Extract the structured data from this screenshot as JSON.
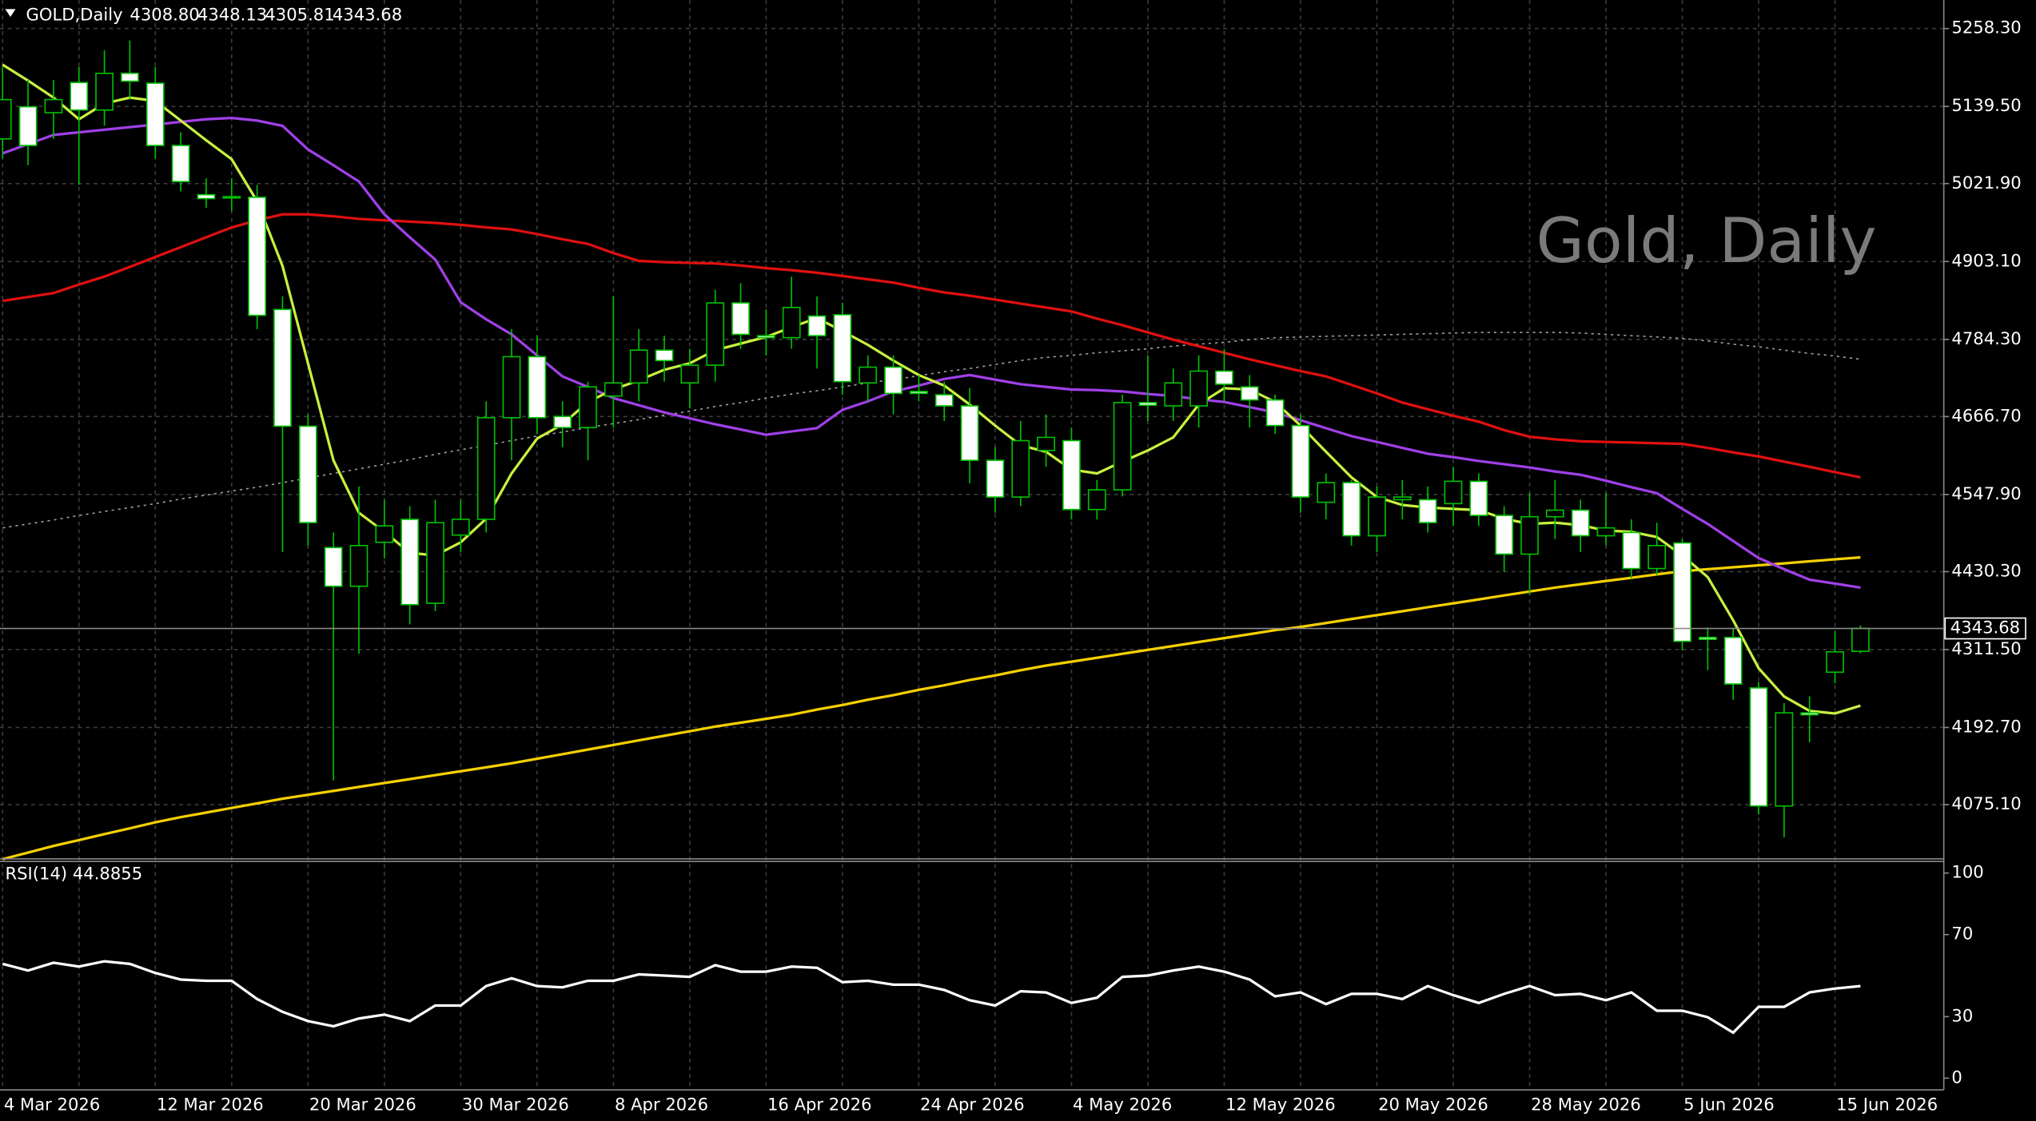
{
  "chart_data": [
    {
      "type": "candlestick",
      "title": "GOLD,Daily",
      "header_ohlc": [
        "4308.80",
        "4348.13",
        "4305.81",
        "4343.68"
      ],
      "watermark": "Gold, Daily",
      "categories": [
        "4 Mar 2026",
        null,
        null,
        null,
        null,
        null,
        "12 Mar 2026",
        null,
        null,
        null,
        null,
        null,
        "20 Mar 2026",
        null,
        null,
        null,
        null,
        null,
        "30 Mar 2026",
        null,
        null,
        null,
        null,
        null,
        "8 Apr 2026",
        null,
        null,
        null,
        null,
        null,
        "16 Apr 2026",
        null,
        null,
        null,
        null,
        null,
        "24 Apr 2026",
        null,
        null,
        null,
        null,
        null,
        "4 May 2026",
        null,
        null,
        null,
        null,
        null,
        "12 May 2026",
        null,
        null,
        null,
        null,
        null,
        "20 May 2026",
        null,
        null,
        null,
        null,
        null,
        "28 May 2026",
        null,
        null,
        null,
        null,
        null,
        "5 Jun 2026",
        null,
        null,
        null,
        null,
        null,
        "15 Jun 2026",
        null
      ],
      "open": [
        5090,
        5139,
        5130,
        5176,
        5134,
        5190,
        5175,
        5080,
        5005,
        5000,
        5001,
        4830,
        4652,
        4467,
        4408,
        4475,
        4510,
        4382,
        4486,
        4510,
        4665,
        4758,
        4667,
        4650,
        4698,
        4718,
        4768,
        4718,
        4745,
        4840,
        4790,
        4787,
        4820,
        4822,
        4718,
        4742,
        4705,
        4700,
        4683,
        4600,
        4544,
        4615,
        4630,
        4525,
        4555,
        4688,
        4683,
        4683,
        4736,
        4712,
        4692,
        4653,
        4536,
        4566,
        4485,
        4540,
        4540,
        4534,
        4568,
        4516,
        4457,
        4514,
        4524,
        4485,
        4490,
        4435,
        4474,
        4330,
        4330,
        4253,
        4073,
        4215,
        4277,
        4308.8
      ],
      "high": [
        5200,
        5180,
        5180,
        5200,
        5225,
        5240,
        5200,
        5100,
        5030,
        5030,
        5020,
        4850,
        4670,
        4490,
        4560,
        4540,
        4530,
        4540,
        4540,
        4690,
        4800,
        4790,
        4690,
        4720,
        4850,
        4800,
        4790,
        4770,
        4860,
        4870,
        4830,
        4880,
        4850,
        4840,
        4760,
        4760,
        4730,
        4720,
        4710,
        4620,
        4660,
        4670,
        4650,
        4570,
        4700,
        4760,
        4740,
        4760,
        4770,
        4730,
        4700,
        4670,
        4580,
        4570,
        4560,
        4570,
        4560,
        4590,
        4580,
        4530,
        4550,
        4570,
        4540,
        4550,
        4510,
        4505,
        4480,
        4345,
        4345,
        4262,
        4230,
        4240,
        4340,
        4348.13
      ],
      "low": [
        5060,
        5050,
        5090,
        5020,
        5110,
        5150,
        5060,
        5010,
        4985,
        4980,
        4800,
        4460,
        4470,
        4112,
        4305,
        4450,
        4350,
        4370,
        4460,
        4490,
        4600,
        4640,
        4620,
        4600,
        4650,
        4690,
        4720,
        4680,
        4720,
        4770,
        4760,
        4770,
        4740,
        4700,
        4690,
        4670,
        4690,
        4660,
        4565,
        4520,
        4530,
        4590,
        4510,
        4510,
        4545,
        4660,
        4660,
        4650,
        4690,
        4650,
        4640,
        4520,
        4510,
        4470,
        4460,
        4510,
        4490,
        4500,
        4500,
        4430,
        4395,
        4480,
        4460,
        4470,
        4420,
        4425,
        4310,
        4280,
        4235,
        4060,
        4025,
        4170,
        4260,
        4305.81
      ],
      "close": [
        5150,
        5080,
        5150,
        5134,
        5190,
        5178,
        5080,
        5025,
        4999,
        5002,
        4821,
        4652,
        4505,
        4408,
        4470,
        4500,
        4380,
        4505,
        4510,
        4665,
        4758,
        4665,
        4650,
        4712,
        4718,
        4768,
        4752,
        4745,
        4840,
        4792,
        4787,
        4833,
        4790,
        4720,
        4742,
        4702,
        4702,
        4683,
        4600,
        4544,
        4630,
        4635,
        4525,
        4555,
        4688,
        4684,
        4718,
        4736,
        4716,
        4692,
        4653,
        4544,
        4566,
        4485,
        4544,
        4544,
        4505,
        4568,
        4516,
        4457,
        4514,
        4524,
        4485,
        4497,
        4435,
        4470,
        4324,
        4327,
        4259,
        4073,
        4215,
        4212,
        4308,
        4343.68
      ],
      "up_color": "#000000",
      "down_color": "#ffffff",
      "wick_color": "#00c000",
      "series": [
        {
          "color": "#9a9a9a",
          "dotted": true,
          "values": [
            4497,
            4503,
            4509,
            4516,
            4522,
            4528,
            4534,
            4541,
            4547,
            4553,
            4559,
            4566,
            4573,
            4580,
            4587,
            4594,
            4601,
            4609,
            4616,
            4623,
            4630,
            4637,
            4643,
            4650,
            4656,
            4662,
            4669,
            4675,
            4682,
            4688,
            4695,
            4701,
            4706,
            4712,
            4718,
            4723,
            4729,
            4735,
            4740,
            4746,
            4752,
            4757,
            4760,
            4764,
            4767,
            4770,
            4774,
            4777,
            4780,
            4784,
            4787,
            4788,
            4789,
            4790,
            4791,
            4792,
            4793,
            4794,
            4795,
            4795,
            4795,
            4795,
            4794,
            4792,
            4790,
            4788,
            4786,
            4782,
            4777,
            4773,
            4768,
            4763,
            4759,
            4754
          ]
        },
        {
          "color": "#f5d000",
          "dotted": false,
          "values": [
            3992,
            4002,
            4012,
            4021,
            4030,
            4039,
            4048,
            4056,
            4063,
            4070,
            4077,
            4084,
            4090,
            4096,
            4102,
            4108,
            4114,
            4120,
            4126,
            4132,
            4138,
            4145,
            4152,
            4159,
            4166,
            4173,
            4180,
            4187,
            4194,
            4200,
            4206,
            4212,
            4220,
            4227,
            4235,
            4242,
            4250,
            4257,
            4265,
            4272,
            4280,
            4287,
            4293,
            4299,
            4305,
            4311,
            4317,
            4323,
            4329,
            4335,
            4341,
            4346,
            4352,
            4358,
            4364,
            4370,
            4376,
            4382,
            4388,
            4394,
            4400,
            4406,
            4411,
            4416,
            4421,
            4426,
            4431,
            4434,
            4437,
            4440,
            4443,
            4446,
            4449,
            4452
          ]
        },
        {
          "color": "#e01010",
          "dotted": false,
          "values": [
            4843,
            4849,
            4855,
            4868,
            4880,
            4895,
            4910,
            4925,
            4940,
            4955,
            4966,
            4975,
            4975,
            4972,
            4968,
            4966,
            4964,
            4962,
            4959,
            4955,
            4952,
            4945,
            4937,
            4930,
            4916,
            4904,
            4902,
            4901,
            4900,
            4897,
            4893,
            4890,
            4886,
            4881,
            4876,
            4871,
            4863,
            4856,
            4851,
            4845,
            4839,
            4833,
            4827,
            4816,
            4806,
            4795,
            4784,
            4774,
            4764,
            4754,
            4745,
            4736,
            4728,
            4715,
            4702,
            4688,
            4678,
            4668,
            4659,
            4646,
            4636,
            4632,
            4629,
            4628,
            4627,
            4626,
            4625,
            4619,
            4612,
            4606,
            4598,
            4590,
            4582,
            4574
          ]
        },
        {
          "color": "#a040e8",
          "dotted": false,
          "values": [
            5068,
            5082,
            5096,
            5100,
            5104,
            5108,
            5112,
            5116,
            5120,
            5122,
            5118,
            5110,
            5074,
            5050,
            5025,
            4975,
            4940,
            4906,
            4841,
            4815,
            4792,
            4760,
            4728,
            4712,
            4695,
            4684,
            4673,
            4664,
            4655,
            4647,
            4639,
            4644,
            4649,
            4677,
            4690,
            4705,
            4714,
            4724,
            4730,
            4723,
            4716,
            4712,
            4708,
            4707,
            4705,
            4701,
            4698,
            4693,
            4689,
            4681,
            4673,
            4661,
            4649,
            4637,
            4628,
            4619,
            4610,
            4605,
            4599,
            4594,
            4589,
            4583,
            4578,
            4569,
            4559,
            4550,
            4526,
            4503,
            4477,
            4451,
            4434,
            4418,
            4412,
            4406
          ]
        },
        {
          "color": "#c8f040",
          "dotted": false,
          "values": [
            5203,
            5179,
            5153,
            5120,
            5144,
            5153,
            5148,
            5118,
            5088,
            5059,
            4995,
            4896,
            4748,
            4600,
            4520,
            4491,
            4459,
            4455,
            4475,
            4511,
            4580,
            4633,
            4655,
            4689,
            4708,
            4722,
            4738,
            4748,
            4768,
            4778,
            4788,
            4803,
            4817,
            4797,
            4776,
            4752,
            4730,
            4714,
            4685,
            4653,
            4623,
            4613,
            4586,
            4580,
            4598,
            4615,
            4635,
            4685,
            4710,
            4708,
            4689,
            4653,
            4613,
            4574,
            4544,
            4532,
            4528,
            4526,
            4524,
            4511,
            4503,
            4505,
            4501,
            4493,
            4491,
            4483,
            4455,
            4422,
            4356,
            4283,
            4240,
            4218,
            4214,
            4226
          ]
        }
      ],
      "last_price": {
        "value": 4343.68,
        "label": "4343.68"
      },
      "ylim": [
        3992.3,
        5301.8
      ],
      "yticks": [
        {
          "value": 5258.3,
          "label": "5258.30"
        },
        {
          "value": 5139.5,
          "label": "5139.50"
        },
        {
          "value": 5021.9,
          "label": "5021.90"
        },
        {
          "value": 4903.1,
          "label": "4903.10"
        },
        {
          "value": 4784.3,
          "label": "4784.30"
        },
        {
          "value": 4666.7,
          "label": "4666.70"
        },
        {
          "value": 4547.9,
          "label": "4547.90"
        },
        {
          "value": 4430.3,
          "label": "4430.30"
        },
        {
          "value": 4311.5,
          "label": "4311.50"
        },
        {
          "value": 4192.7,
          "label": "4192.70"
        },
        {
          "value": 4075.1,
          "label": "4075.10"
        }
      ],
      "grid": true
    },
    {
      "type": "line",
      "title": "RSI(14) 44.8855",
      "color": "#ffffff",
      "values": [
        55.7,
        52.5,
        56.3,
        54.4,
        57.0,
        55.7,
        51.3,
        48.1,
        47.5,
        47.5,
        38.6,
        32.3,
        27.8,
        25.3,
        29.1,
        31.0,
        27.8,
        35.4,
        35.4,
        44.9,
        48.7,
        44.9,
        44.3,
        47.5,
        47.5,
        50.6,
        50.0,
        49.4,
        55.1,
        51.9,
        51.9,
        54.4,
        53.8,
        46.8,
        47.5,
        45.6,
        45.6,
        43.0,
        38.0,
        35.4,
        42.4,
        41.8,
        36.7,
        39.2,
        49.4,
        50.0,
        52.5,
        54.4,
        51.9,
        48.1,
        39.9,
        41.8,
        36.1,
        41.1,
        41.1,
        38.6,
        44.9,
        40.5,
        36.7,
        41.1,
        44.9,
        40.5,
        41.1,
        38.0,
        41.8,
        32.9,
        32.9,
        29.7,
        22.2,
        34.8,
        34.8,
        41.8,
        43.7,
        44.8855
      ],
      "ylim": [
        -5.7,
        105
      ],
      "yticks": [
        100,
        70,
        30,
        0
      ],
      "grid": false
    }
  ]
}
